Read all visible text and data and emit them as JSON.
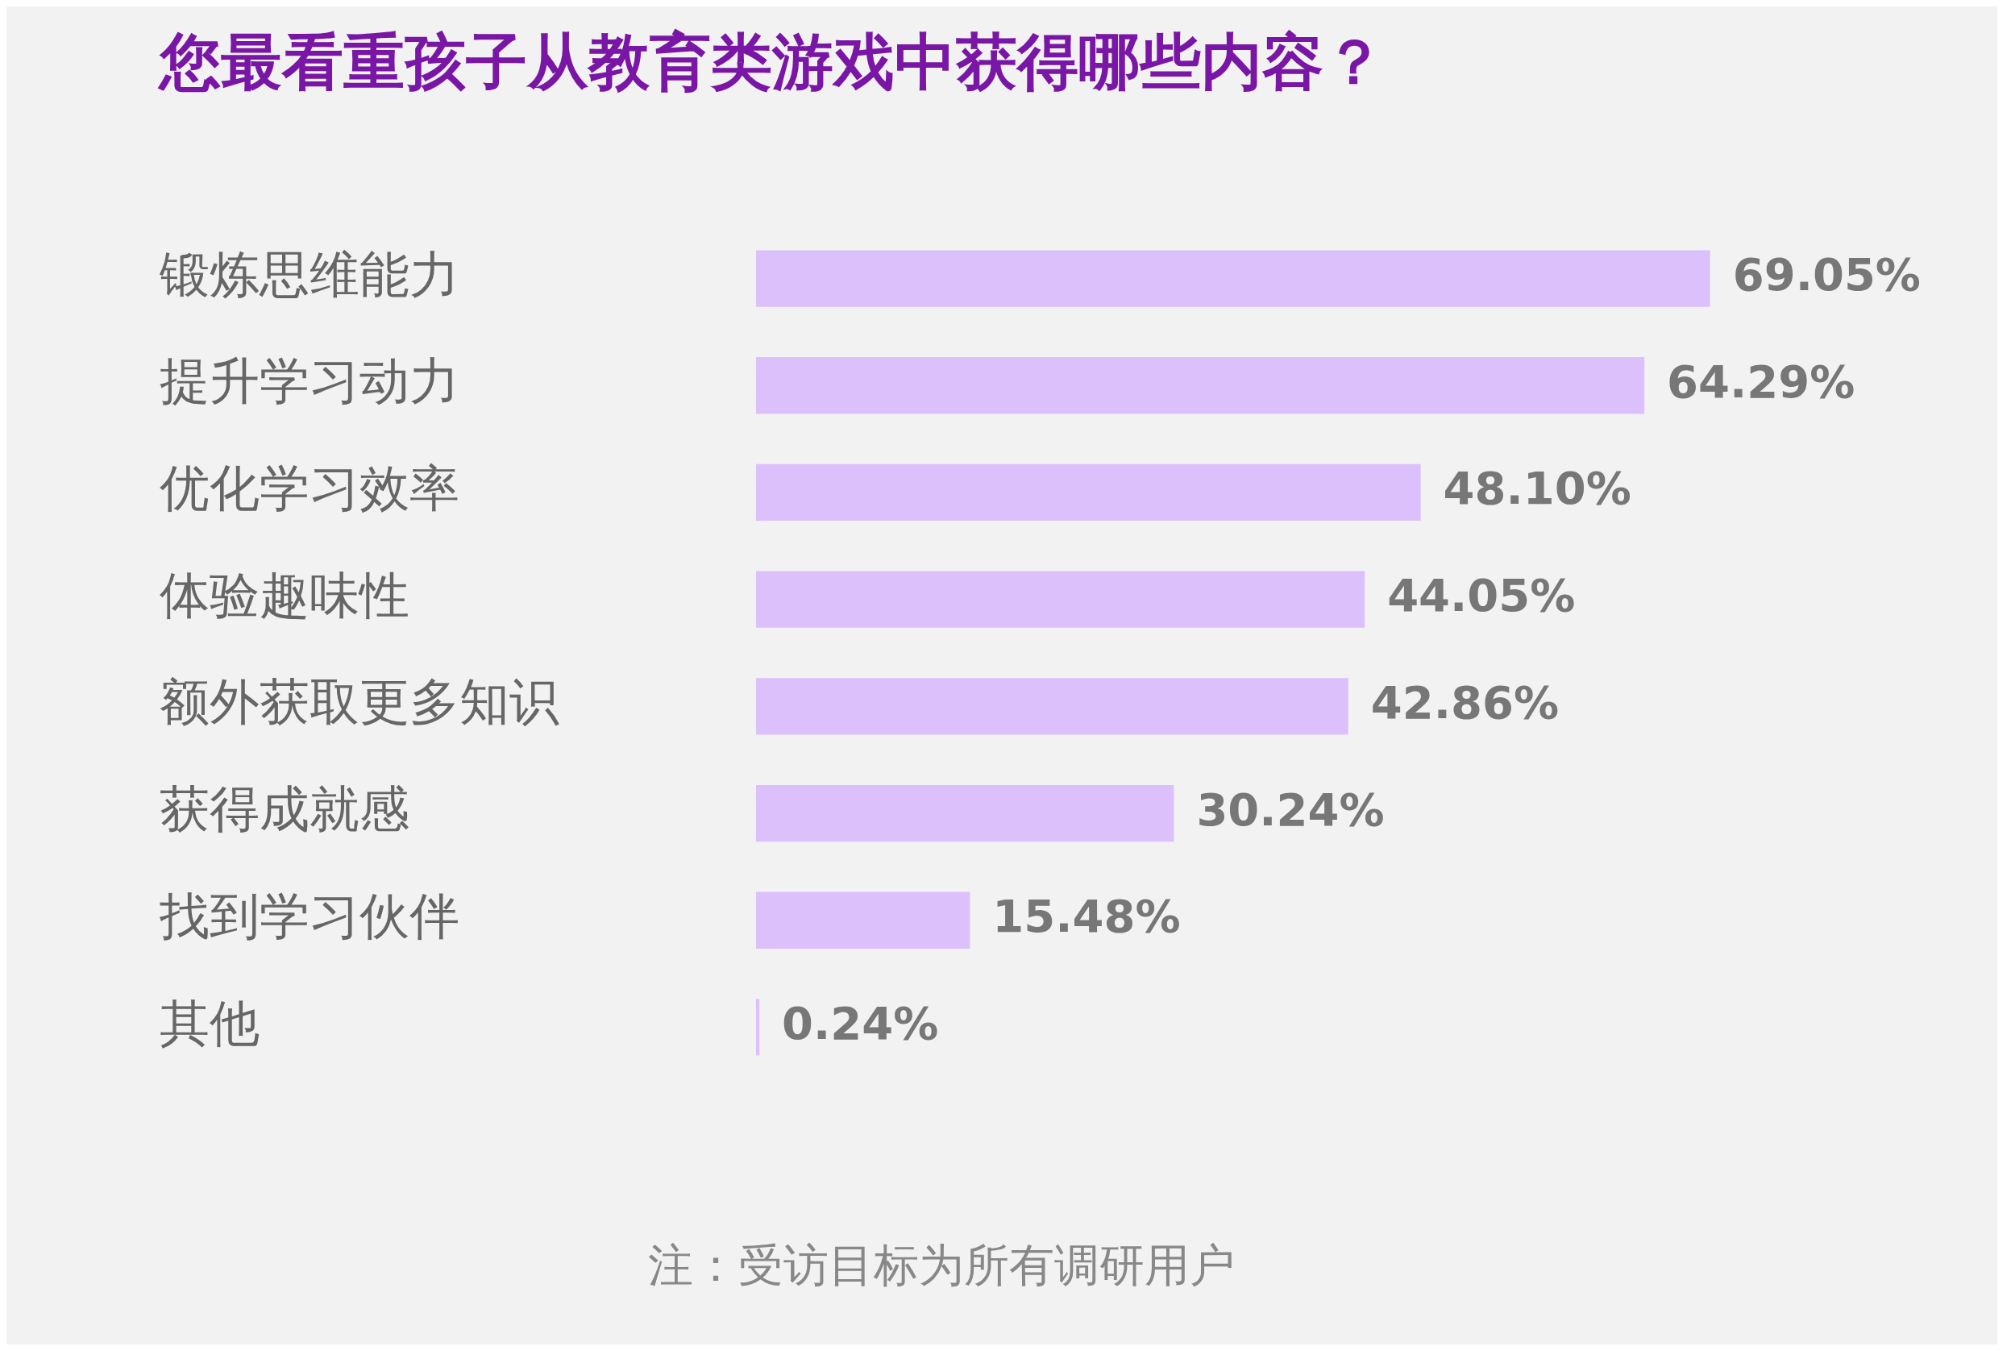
{
  "chart_data": {
    "type": "bar",
    "orientation": "horizontal",
    "title": "您最看重孩子从教育类游戏中获得哪些内容？",
    "categories": [
      "锻炼思维能力",
      "提升学习动力",
      "优化学习效率",
      "体验趣味性",
      "额外获取更多知识",
      "获得成就感",
      "找到学习伙伴",
      "其他"
    ],
    "values": [
      69.05,
      64.29,
      48.1,
      44.05,
      42.86,
      30.24,
      15.48,
      0.24
    ],
    "value_labels": [
      "69.05%",
      "64.29%",
      "48.10%",
      "44.05%",
      "42.86%",
      "30.24%",
      "15.48%",
      "0.24%"
    ],
    "color": "#dcc0fb",
    "annotations": [
      "注：受访目标为所有调研用户"
    ]
  }
}
